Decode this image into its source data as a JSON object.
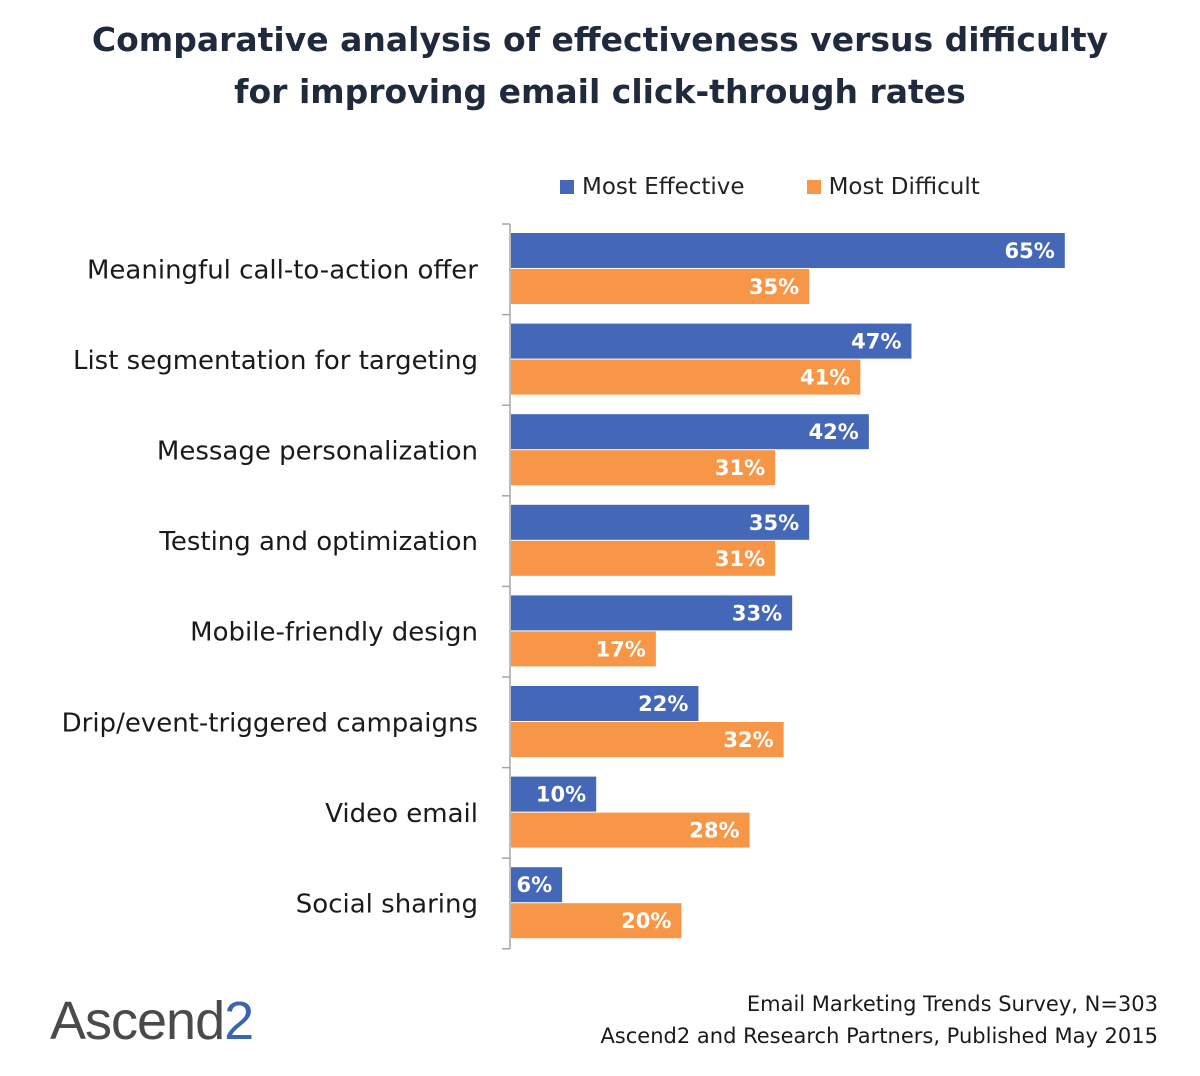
{
  "title_line1": "Comparative analysis of effectiveness versus difficulty",
  "title_line2": "for improving email click-through rates",
  "colors": {
    "effective": "#4468b7",
    "difficult": "#f79646",
    "axis": "#a6a6a6"
  },
  "chart_data": {
    "type": "bar",
    "orientation": "horizontal",
    "title": "Comparative analysis of effectiveness versus difficulty for improving email click-through rates",
    "categories": [
      "Meaningful call-to-action offer",
      "List segmentation for targeting",
      "Message personalization",
      "Testing and optimization",
      "Mobile-friendly design",
      "Drip/event-triggered campaigns",
      "Video email",
      "Social sharing"
    ],
    "series": [
      {
        "name": "Most Effective",
        "values": [
          65,
          47,
          42,
          35,
          33,
          22,
          10,
          6
        ]
      },
      {
        "name": "Most Difficult",
        "values": [
          35,
          41,
          31,
          31,
          17,
          32,
          28,
          20
        ]
      }
    ],
    "value_suffix": "%",
    "legend_position": "top",
    "xlim": [
      0,
      70
    ],
    "grid": false
  },
  "footer": {
    "logo_text": "Ascend",
    "logo_number": "2",
    "source_line1": "Email Marketing Trends Survey, N=303",
    "source_line2": "Ascend2 and Research Partners, Published May 2015"
  }
}
